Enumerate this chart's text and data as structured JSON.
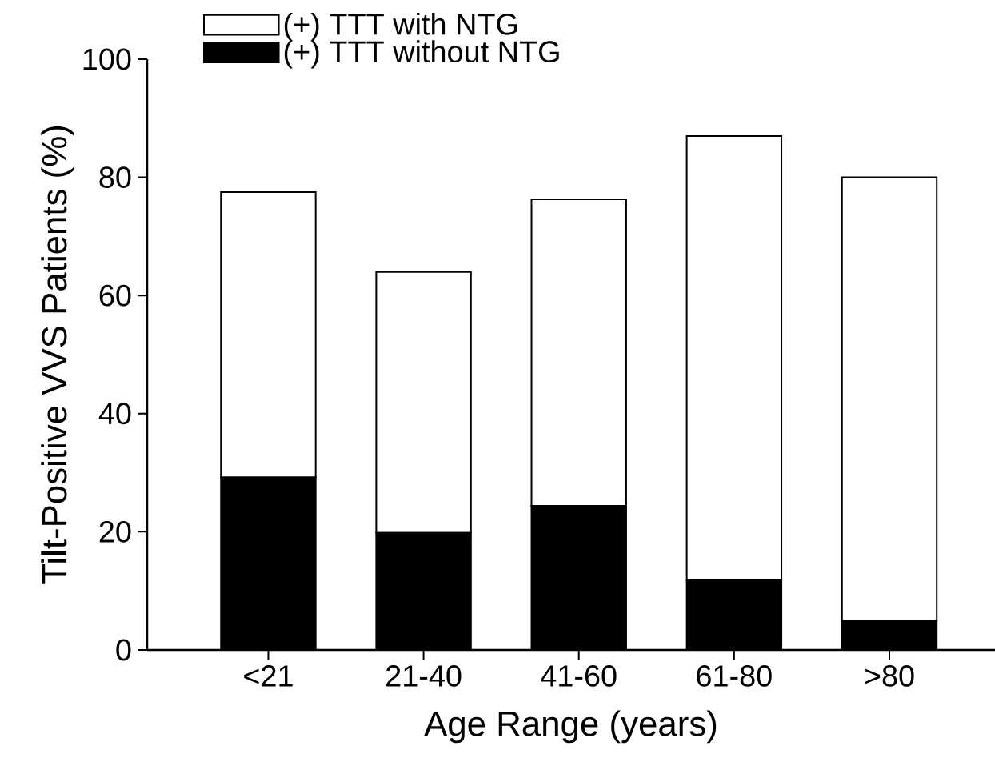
{
  "chart_data": {
    "type": "bar",
    "stacked": true,
    "xlabel": "Age Range (years)",
    "ylabel": "Tilt-Positive VVS Patients (%)",
    "categories": [
      "<21",
      "21-40",
      "41-60",
      "61-80",
      ">80"
    ],
    "series": [
      {
        "name": "(+) TTT without NTG",
        "color": "#000000",
        "values": [
          29.2,
          19.8,
          24.4,
          11.8,
          4.9
        ]
      },
      {
        "name": "(+) TTT with NTG",
        "color": "#ffffff",
        "values": [
          48.3,
          44.2,
          51.9,
          75.2,
          75.1
        ]
      }
    ],
    "ylim": [
      0,
      100
    ],
    "yticks": [
      0,
      20,
      40,
      60,
      80,
      100
    ],
    "legend": "top left",
    "grid": false
  }
}
